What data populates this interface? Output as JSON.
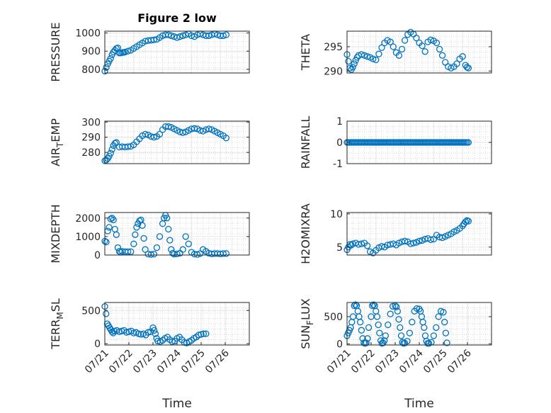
{
  "chart_data": [
    {
      "type": "scatter",
      "title": "Figure 2 low",
      "ylabel": "PRESSURE",
      "ylim": [
        780,
        1010
      ],
      "yticks": [
        {
          "v": 800,
          "label": "800"
        },
        {
          "v": 900,
          "label": "900"
        },
        {
          "v": 1000,
          "label": "1000"
        }
      ],
      "xlim": [
        0,
        5
      ],
      "xticks": [],
      "xlabel": "",
      "x": [
        0,
        0.05,
        0.1,
        0.15,
        0.2,
        0.25,
        0.3,
        0.35,
        0.4,
        0.45,
        0.5,
        0.55,
        0.6,
        0.65,
        0.7,
        0.8,
        0.9,
        1.0,
        1.1,
        1.2,
        1.3,
        1.4,
        1.5,
        1.6,
        1.7,
        1.8,
        1.9,
        2.0,
        2.1,
        2.2,
        2.3,
        2.4,
        2.5,
        2.6,
        2.7,
        2.8,
        2.9,
        3.0,
        3.1,
        3.2,
        3.3,
        3.4,
        3.5,
        3.6,
        3.7,
        3.8,
        3.9,
        4.0,
        4.1,
        4.2
      ],
      "y": [
        790,
        810,
        830,
        845,
        860,
        880,
        895,
        905,
        915,
        918,
        890,
        890,
        892,
        893,
        895,
        900,
        905,
        915,
        925,
        935,
        945,
        955,
        958,
        960,
        962,
        965,
        975,
        985,
        990,
        990,
        985,
        980,
        975,
        980,
        985,
        990,
        995,
        985,
        980,
        990,
        995,
        990,
        985,
        985,
        990,
        995,
        990,
        985,
        985,
        990
      ]
    },
    {
      "type": "scatter",
      "title": "",
      "ylabel": "THETA",
      "ylim": [
        289.6,
        298.2
      ],
      "yticks": [
        {
          "v": 290,
          "label": "290"
        },
        {
          "v": 295,
          "label": "295"
        }
      ],
      "xlim": [
        0,
        5
      ],
      "xticks": [],
      "xlabel": "",
      "x": [
        0,
        0.05,
        0.1,
        0.15,
        0.2,
        0.25,
        0.3,
        0.35,
        0.4,
        0.5,
        0.6,
        0.7,
        0.8,
        0.9,
        1.0,
        1.1,
        1.2,
        1.3,
        1.4,
        1.5,
        1.6,
        1.7,
        1.8,
        1.9,
        2.0,
        2.1,
        2.2,
        2.3,
        2.4,
        2.5,
        2.6,
        2.7,
        2.8,
        2.9,
        3.0,
        3.1,
        3.2,
        3.3,
        3.4,
        3.5,
        3.6,
        3.7,
        3.8,
        3.9,
        4.0,
        4.1,
        4.15,
        4.2
      ],
      "y": [
        293.4,
        292.0,
        290.6,
        290.3,
        290.8,
        291.5,
        292.2,
        292.8,
        293.2,
        293.4,
        293.2,
        293.0,
        292.8,
        292.5,
        292.3,
        293.5,
        294.8,
        295.8,
        296.3,
        296.0,
        295.0,
        293.8,
        293.2,
        294.5,
        296.3,
        297.5,
        298.0,
        297.6,
        296.8,
        295.8,
        295.2,
        294.0,
        296.0,
        296.4,
        296.2,
        295.8,
        294.5,
        293.2,
        291.8,
        290.9,
        290.6,
        290.9,
        291.5,
        292.5,
        293.0,
        291.2,
        290.8,
        290.6
      ]
    },
    {
      "type": "scatter",
      "title": "",
      "ylabel": "AIR_TEMP",
      "ylim": [
        272.6,
        300.6
      ],
      "yticks": [
        {
          "v": 280,
          "label": "280"
        },
        {
          "v": 290,
          "label": "290"
        },
        {
          "v": 300,
          "label": "300"
        }
      ],
      "xlim": [
        0,
        5
      ],
      "xticks": [],
      "xlabel": "",
      "x": [
        0,
        0.05,
        0.1,
        0.15,
        0.2,
        0.25,
        0.3,
        0.35,
        0.4,
        0.5,
        0.6,
        0.7,
        0.8,
        0.9,
        1.0,
        1.1,
        1.2,
        1.3,
        1.4,
        1.5,
        1.6,
        1.7,
        1.8,
        1.9,
        2.0,
        2.1,
        2.2,
        2.3,
        2.4,
        2.5,
        2.6,
        2.7,
        2.8,
        2.9,
        3.0,
        3.1,
        3.2,
        3.3,
        3.4,
        3.5,
        3.6,
        3.7,
        3.8,
        3.9,
        4.0,
        4.1,
        4.2
      ],
      "y": [
        274.5,
        275.0,
        276.0,
        277.5,
        279.5,
        282.0,
        284.5,
        286.0,
        286.5,
        283.5,
        283.8,
        283.5,
        283.8,
        284.0,
        285.0,
        287.0,
        289.0,
        291.0,
        292.0,
        291.5,
        290.5,
        290.0,
        290.5,
        292.0,
        295.0,
        297.0,
        297.0,
        296.5,
        295.5,
        294.5,
        293.5,
        293.0,
        293.5,
        294.5,
        295.5,
        295.8,
        295.5,
        294.5,
        294.0,
        295.0,
        295.5,
        295.0,
        294.0,
        293.0,
        292.0,
        291.0,
        289.5
      ]
    },
    {
      "type": "scatter",
      "title": "",
      "ylabel": "RAINFALL",
      "ylim": [
        -1,
        1
      ],
      "yticks": [
        {
          "v": -1,
          "label": "-1"
        },
        {
          "v": 0,
          "label": "0"
        },
        {
          "v": 1,
          "label": "1"
        }
      ],
      "xlim": [
        0,
        5
      ],
      "xticks": [],
      "xlabel": "",
      "x": [
        0,
        0.05,
        0.1,
        0.15,
        0.2,
        0.25,
        0.3,
        0.35,
        0.4,
        0.45,
        0.5,
        0.55,
        0.6,
        0.65,
        0.7,
        0.75,
        0.8,
        0.85,
        0.9,
        0.95,
        1.0,
        1.05,
        1.1,
        1.15,
        1.2,
        1.25,
        1.3,
        1.35,
        1.4,
        1.45,
        1.5,
        1.55,
        1.6,
        1.65,
        1.7,
        1.75,
        1.8,
        1.85,
        1.9,
        1.95,
        2.0,
        2.05,
        2.1,
        2.15,
        2.2,
        2.25,
        2.3,
        2.35,
        2.4,
        2.45,
        2.5,
        2.55,
        2.6,
        2.65,
        2.7,
        2.75,
        2.8,
        2.85,
        2.9,
        2.95,
        3.0,
        3.05,
        3.1,
        3.15,
        3.2,
        3.25,
        3.3,
        3.35,
        3.4,
        3.45,
        3.5,
        3.55,
        3.6,
        3.65,
        3.7,
        3.75,
        3.8,
        3.85,
        3.9,
        3.95,
        4.0,
        4.05,
        4.1,
        4.15,
        4.2
      ],
      "y": [
        0,
        0,
        0,
        0,
        0,
        0,
        0,
        0,
        0,
        0,
        0,
        0,
        0,
        0,
        0,
        0,
        0,
        0,
        0,
        0,
        0,
        0,
        0,
        0,
        0,
        0,
        0,
        0,
        0,
        0,
        0,
        0,
        0,
        0,
        0,
        0,
        0,
        0,
        0,
        0,
        0,
        0,
        0,
        0,
        0,
        0,
        0,
        0,
        0,
        0,
        0,
        0,
        0,
        0,
        0,
        0,
        0,
        0,
        0,
        0,
        0,
        0,
        0,
        0,
        0,
        0,
        0,
        0,
        0,
        0,
        0,
        0,
        0,
        0,
        0,
        0,
        0,
        0,
        0,
        0,
        0,
        0,
        0,
        0,
        0
      ]
    },
    {
      "type": "scatter",
      "title": "",
      "ylabel": "MIXDEPTH",
      "ylim": [
        0,
        2300
      ],
      "yticks": [
        {
          "v": 0,
          "label": "0"
        },
        {
          "v": 1000,
          "label": "1000"
        },
        {
          "v": 2000,
          "label": "2000"
        }
      ],
      "xlim": [
        0,
        5
      ],
      "xticks": [],
      "xlabel": "",
      "x": [
        0,
        0.05,
        0.1,
        0.15,
        0.2,
        0.25,
        0.3,
        0.35,
        0.4,
        0.45,
        0.5,
        0.55,
        0.6,
        0.7,
        0.8,
        0.9,
        1.0,
        1.05,
        1.1,
        1.15,
        1.2,
        1.25,
        1.3,
        1.35,
        1.4,
        1.5,
        1.6,
        1.7,
        1.8,
        1.9,
        2.0,
        2.05,
        2.1,
        2.15,
        2.2,
        2.25,
        2.3,
        2.35,
        2.4,
        2.5,
        2.6,
        2.7,
        2.8,
        2.9,
        3.0,
        3.1,
        3.2,
        3.3,
        3.4,
        3.5,
        3.6,
        3.7,
        3.8,
        3.9,
        4.0,
        4.1,
        4.2
      ],
      "y": [
        750,
        700,
        1300,
        1500,
        1950,
        2000,
        1900,
        1400,
        1100,
        400,
        200,
        150,
        200,
        180,
        180,
        180,
        600,
        1100,
        1500,
        1700,
        1850,
        1900,
        1600,
        900,
        300,
        50,
        30,
        50,
        400,
        1000,
        1700,
        2000,
        2150,
        2000,
        1400,
        800,
        300,
        100,
        50,
        60,
        100,
        300,
        1000,
        600,
        150,
        50,
        30,
        80,
        300,
        200,
        100,
        60,
        80,
        80,
        60,
        80,
        80
      ]
    },
    {
      "type": "scatter",
      "title": "",
      "ylabel": "H2OMIXRA",
      "ylim": [
        3.8,
        10.2
      ],
      "yticks": [
        {
          "v": 5,
          "label": "5"
        },
        {
          "v": 10,
          "label": "10"
        }
      ],
      "xlim": [
        0,
        5
      ],
      "xticks": [],
      "xlabel": "",
      "x": [
        0,
        0.05,
        0.1,
        0.15,
        0.2,
        0.3,
        0.4,
        0.5,
        0.6,
        0.7,
        0.8,
        0.9,
        1.0,
        1.1,
        1.2,
        1.3,
        1.4,
        1.5,
        1.6,
        1.7,
        1.8,
        1.9,
        2.0,
        2.1,
        2.2,
        2.3,
        2.4,
        2.5,
        2.6,
        2.7,
        2.8,
        2.9,
        3.0,
        3.1,
        3.2,
        3.3,
        3.4,
        3.5,
        3.6,
        3.7,
        3.8,
        3.9,
        4.0,
        4.05,
        4.1,
        4.15,
        4.2
      ],
      "y": [
        4.6,
        5.0,
        5.4,
        5.3,
        5.5,
        5.6,
        5.4,
        5.5,
        5.6,
        5.2,
        4.3,
        4.1,
        4.5,
        4.9,
        5.1,
        5.0,
        5.3,
        5.4,
        5.5,
        5.3,
        5.6,
        5.8,
        5.9,
        5.8,
        5.5,
        5.6,
        5.7,
        5.9,
        6.0,
        6.2,
        6.3,
        6.1,
        6.2,
        6.8,
        6.5,
        6.4,
        6.6,
        6.8,
        7.0,
        7.3,
        7.5,
        7.8,
        8.2,
        8.5,
        8.8,
        9.0,
        8.9
      ]
    },
    {
      "type": "scatter",
      "title": "",
      "ylabel": "TERR_MSL",
      "ylim": [
        -20,
        620
      ],
      "yticks": [
        {
          "v": 0,
          "label": "0"
        },
        {
          "v": 500,
          "label": "500"
        }
      ],
      "xlim": [
        0,
        6
      ],
      "xticks": [
        {
          "v": 0,
          "label": "07/21"
        },
        {
          "v": 1,
          "label": "07/22"
        },
        {
          "v": 2,
          "label": "07/23"
        },
        {
          "v": 3,
          "label": "07/24"
        },
        {
          "v": 4,
          "label": "07/25"
        },
        {
          "v": 5,
          "label": "07/26"
        }
      ],
      "xlabel": "Time",
      "x": [
        0,
        0.05,
        0.1,
        0.15,
        0.2,
        0.25,
        0.3,
        0.35,
        0.4,
        0.5,
        0.6,
        0.7,
        0.8,
        0.9,
        1.0,
        1.1,
        1.2,
        1.3,
        1.4,
        1.5,
        1.6,
        1.7,
        1.8,
        1.9,
        2.0,
        2.05,
        2.1,
        2.15,
        2.2,
        2.3,
        2.4,
        2.5,
        2.6,
        2.7,
        2.8,
        2.9,
        3.0,
        3.1,
        3.2,
        3.3,
        3.4,
        3.5,
        3.6,
        3.7,
        3.8,
        3.9,
        4.0,
        4.1,
        4.2
      ],
      "y": [
        560,
        450,
        300,
        270,
        240,
        210,
        180,
        160,
        190,
        200,
        180,
        190,
        200,
        170,
        180,
        190,
        160,
        170,
        150,
        140,
        150,
        130,
        170,
        180,
        240,
        200,
        150,
        80,
        40,
        30,
        50,
        80,
        100,
        60,
        30,
        40,
        80,
        100,
        60,
        20,
        10,
        30,
        50,
        80,
        100,
        130,
        140,
        150,
        150
      ]
    },
    {
      "type": "scatter",
      "title": "",
      "ylabel": "SUN_FLUX",
      "ylim": [
        -20,
        760
      ],
      "yticks": [
        {
          "v": 0,
          "label": "0"
        },
        {
          "v": 500,
          "label": "500"
        }
      ],
      "xlim": [
        0,
        6
      ],
      "xticks": [
        {
          "v": 0,
          "label": "07/21"
        },
        {
          "v": 1,
          "label": "07/22"
        },
        {
          "v": 2,
          "label": "07/23"
        },
        {
          "v": 3,
          "label": "07/24"
        },
        {
          "v": 4,
          "label": "07/25"
        },
        {
          "v": 5,
          "label": "07/26"
        }
      ],
      "xlabel": "Time",
      "x": [
        0,
        0.05,
        0.1,
        0.15,
        0.2,
        0.25,
        0.3,
        0.35,
        0.4,
        0.45,
        0.5,
        0.55,
        0.6,
        0.65,
        0.7,
        0.75,
        0.8,
        0.85,
        0.9,
        1.0,
        1.05,
        1.1,
        1.15,
        1.2,
        1.25,
        1.3,
        1.35,
        1.4,
        1.45,
        1.5,
        1.55,
        1.6,
        1.7,
        1.8,
        1.9,
        2.0,
        2.05,
        2.1,
        2.15,
        2.2,
        2.25,
        2.3,
        2.35,
        2.4,
        2.5,
        2.6,
        2.7,
        2.8,
        2.9,
        3.0,
        3.05,
        3.1,
        3.15,
        3.2,
        3.25,
        3.3,
        3.35,
        3.4,
        3.5,
        3.6,
        3.7,
        3.8,
        3.9,
        4.0,
        4.05,
        4.1,
        4.15
      ],
      "y": [
        150,
        200,
        250,
        300,
        400,
        500,
        700,
        720,
        700,
        600,
        500,
        400,
        250,
        100,
        20,
        10,
        20,
        100,
        300,
        500,
        700,
        720,
        700,
        600,
        500,
        350,
        200,
        60,
        10,
        20,
        60,
        150,
        350,
        550,
        690,
        700,
        680,
        600,
        450,
        300,
        150,
        30,
        10,
        15,
        50,
        200,
        400,
        600,
        650,
        640,
        600,
        500,
        400,
        300,
        150,
        50,
        10,
        10,
        30,
        150,
        300,
        500,
        600,
        580,
        400,
        200,
        20
      ]
    }
  ]
}
